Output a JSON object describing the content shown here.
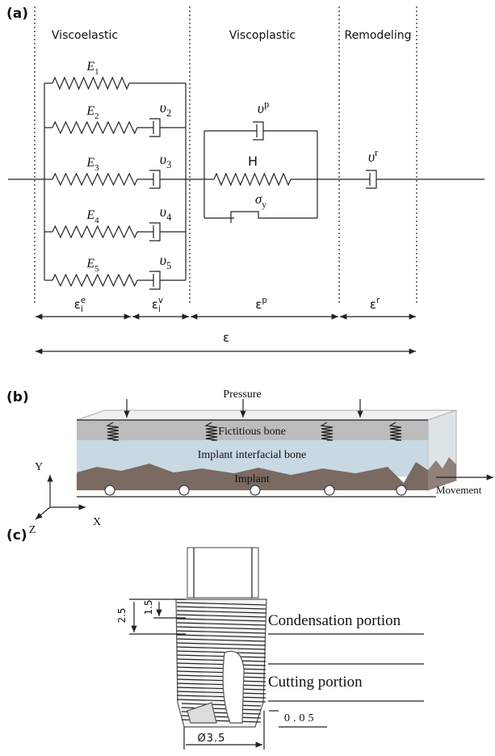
{
  "panel_a": {
    "label": "(a)",
    "sections": [
      "Viscoelastic",
      "Viscoplastic",
      "Remodeling"
    ],
    "springs": [
      {
        "base": "E",
        "sub": "1"
      },
      {
        "base": "E",
        "sub": "2"
      },
      {
        "base": "E",
        "sub": "3"
      },
      {
        "base": "E",
        "sub": "4"
      },
      {
        "base": "E",
        "sub": "5"
      }
    ],
    "dashpots": [
      {
        "base": "υ",
        "sub": "2"
      },
      {
        "base": "υ",
        "sub": "3"
      },
      {
        "base": "υ",
        "sub": "4"
      },
      {
        "base": "υ",
        "sub": "5"
      }
    ],
    "viscoplastic": {
      "dashpot": {
        "base": "υ",
        "sup": "p"
      },
      "spring": "H",
      "slider": {
        "base": "σ",
        "sub": "y"
      }
    },
    "remodeling_dashpot": {
      "base": "υ",
      "sup": "r"
    },
    "strains": [
      {
        "base": "ε",
        "sup": "e",
        "sub": "i"
      },
      {
        "base": "ε",
        "sup": "v",
        "sub": "i"
      },
      {
        "base": "ε",
        "sup": "p"
      },
      {
        "base": "ε",
        "sup": "r"
      }
    ],
    "total_strain": "ε"
  },
  "panel_b": {
    "label": "(b)",
    "pressure": "Pressure",
    "layers": [
      "Fictitious bone",
      "Implant interfacial bone",
      "Implant"
    ],
    "movement": "Movement",
    "axes": [
      "Y",
      "X",
      "Z"
    ]
  },
  "panel_c": {
    "label": "(c)",
    "portions": [
      "Condensation portion",
      "Cutting portion"
    ],
    "dimensions": [
      "2.5",
      "1.5",
      "0.05",
      "Ø3.5"
    ]
  }
}
